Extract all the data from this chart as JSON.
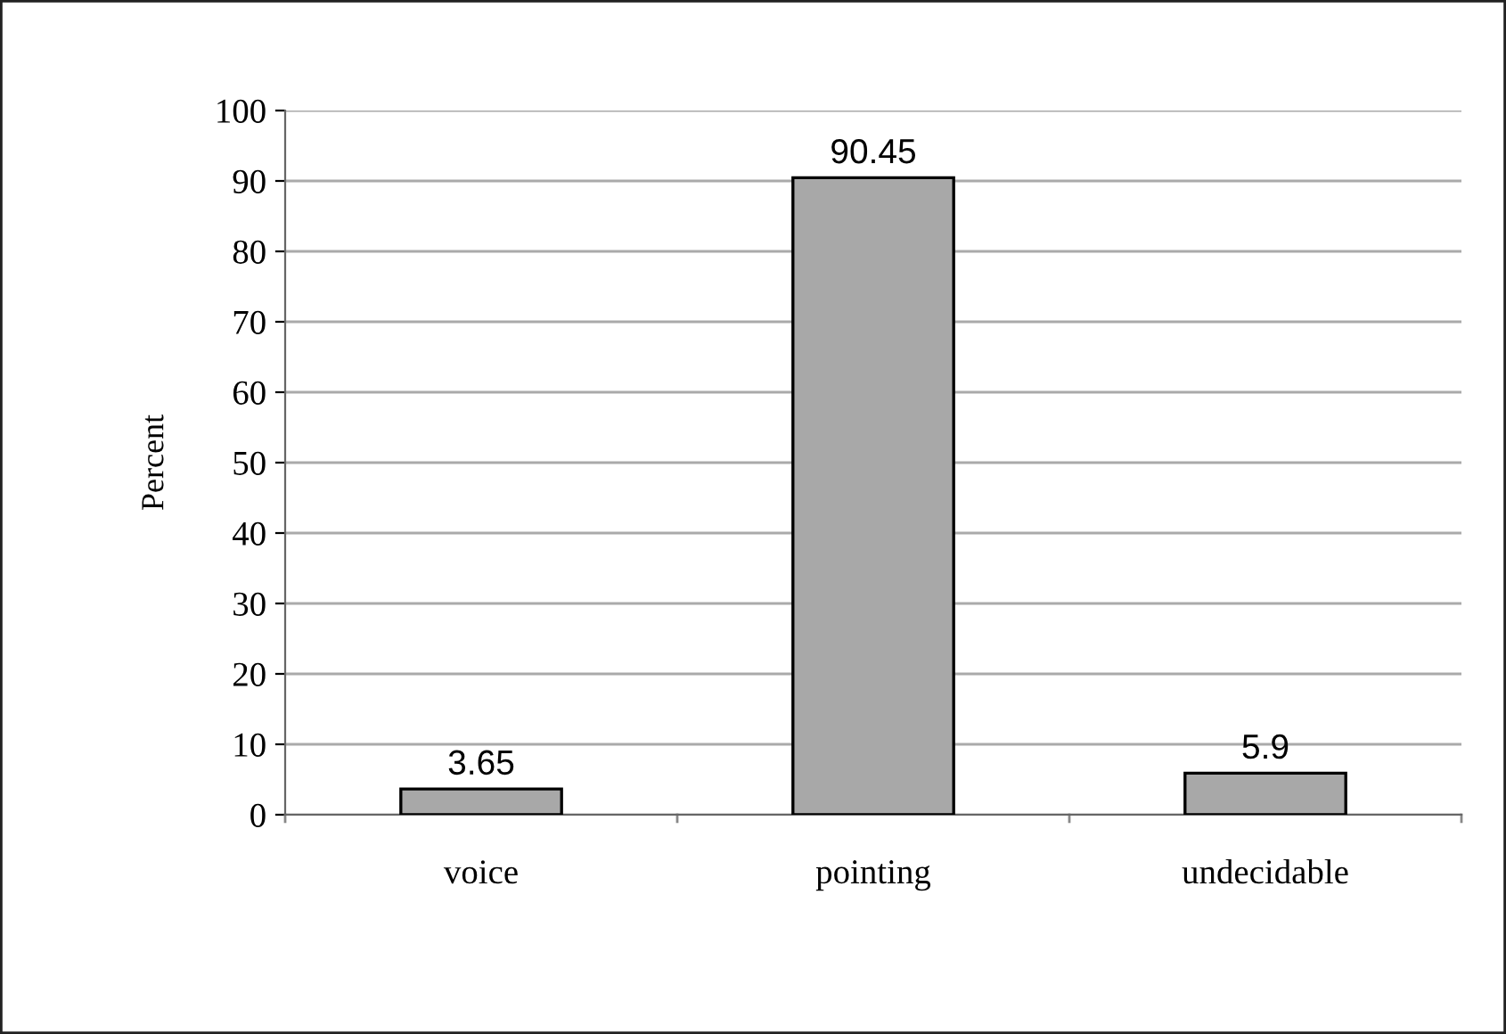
{
  "chart_data": {
    "type": "bar",
    "ylabel": "Percent",
    "categories": [
      "voice",
      "pointing",
      "undecidable"
    ],
    "values": [
      3.65,
      90.45,
      5.9
    ],
    "color": "#a8a8a8",
    "ylim": [
      0,
      100
    ],
    "yticks": [
      0,
      10,
      20,
      30,
      40,
      50,
      60,
      70,
      80,
      90,
      100
    ],
    "grid": "y",
    "data_labels": true
  }
}
